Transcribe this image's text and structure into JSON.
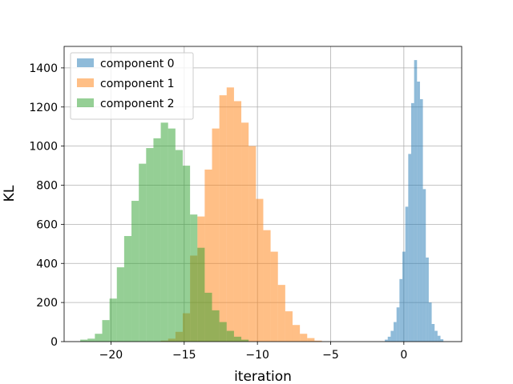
{
  "chart_data": {
    "type": "histogram",
    "title": "",
    "xlabel": "iteration",
    "ylabel": "KL",
    "xlim": [
      -23.2,
      3.95
    ],
    "ylim": [
      0,
      1510
    ],
    "xticks": [
      -20,
      -15,
      -10,
      -5,
      0
    ],
    "xtick_labels": [
      "−20",
      "−15",
      "−10",
      "−5",
      "0"
    ],
    "yticks": [
      0,
      200,
      400,
      600,
      800,
      1000,
      1200,
      1400
    ],
    "ytick_labels": [
      "0",
      "200",
      "400",
      "600",
      "800",
      "1000",
      "1200",
      "1400"
    ],
    "grid": true,
    "legend_position": "top-left",
    "alpha": 0.5,
    "series": [
      {
        "name": "component 0",
        "color": "#1f77b4",
        "bins": [
          {
            "x0": -1.3,
            "x1": -1.1,
            "count": 10
          },
          {
            "x0": -1.1,
            "x1": -0.9,
            "count": 25
          },
          {
            "x0": -0.9,
            "x1": -0.7,
            "count": 55
          },
          {
            "x0": -0.7,
            "x1": -0.5,
            "count": 100
          },
          {
            "x0": -0.5,
            "x1": -0.3,
            "count": 175
          },
          {
            "x0": -0.3,
            "x1": -0.1,
            "count": 320
          },
          {
            "x0": -0.1,
            "x1": 0.1,
            "count": 460
          },
          {
            "x0": 0.1,
            "x1": 0.3,
            "count": 690
          },
          {
            "x0": 0.3,
            "x1": 0.5,
            "count": 960
          },
          {
            "x0": 0.5,
            "x1": 0.7,
            "count": 1220
          },
          {
            "x0": 0.7,
            "x1": 0.9,
            "count": 1440
          },
          {
            "x0": 0.9,
            "x1": 1.1,
            "count": 1330
          },
          {
            "x0": 1.1,
            "x1": 1.3,
            "count": 1240
          },
          {
            "x0": 1.3,
            "x1": 1.5,
            "count": 780
          },
          {
            "x0": 1.5,
            "x1": 1.7,
            "count": 430
          },
          {
            "x0": 1.7,
            "x1": 1.9,
            "count": 200
          },
          {
            "x0": 1.9,
            "x1": 2.1,
            "count": 90
          },
          {
            "x0": 2.1,
            "x1": 2.3,
            "count": 55
          },
          {
            "x0": 2.3,
            "x1": 2.5,
            "count": 30
          },
          {
            "x0": 2.5,
            "x1": 2.7,
            "count": 12
          }
        ]
      },
      {
        "name": "component 1",
        "color": "#ff7f0e",
        "bins": [
          {
            "x0": -16.6,
            "x1": -16.1,
            "count": 5
          },
          {
            "x0": -16.1,
            "x1": -15.6,
            "count": 15
          },
          {
            "x0": -15.6,
            "x1": -15.1,
            "count": 50
          },
          {
            "x0": -15.1,
            "x1": -14.6,
            "count": 145
          },
          {
            "x0": -14.6,
            "x1": -14.1,
            "count": 440
          },
          {
            "x0": -14.1,
            "x1": -13.6,
            "count": 640
          },
          {
            "x0": -13.6,
            "x1": -13.1,
            "count": 880
          },
          {
            "x0": -13.1,
            "x1": -12.6,
            "count": 1090
          },
          {
            "x0": -12.6,
            "x1": -12.1,
            "count": 1260
          },
          {
            "x0": -12.1,
            "x1": -11.6,
            "count": 1300
          },
          {
            "x0": -11.6,
            "x1": -11.1,
            "count": 1230
          },
          {
            "x0": -11.1,
            "x1": -10.6,
            "count": 1120
          },
          {
            "x0": -10.6,
            "x1": -10.1,
            "count": 1000
          },
          {
            "x0": -10.1,
            "x1": -9.6,
            "count": 730
          },
          {
            "x0": -9.6,
            "x1": -9.1,
            "count": 570
          },
          {
            "x0": -9.1,
            "x1": -8.6,
            "count": 460
          },
          {
            "x0": -8.6,
            "x1": -8.1,
            "count": 290
          },
          {
            "x0": -8.1,
            "x1": -7.6,
            "count": 155
          },
          {
            "x0": -7.6,
            "x1": -7.1,
            "count": 85
          },
          {
            "x0": -7.1,
            "x1": -6.6,
            "count": 40
          },
          {
            "x0": -6.6,
            "x1": -6.1,
            "count": 18
          },
          {
            "x0": -6.1,
            "x1": -5.6,
            "count": 5
          }
        ]
      },
      {
        "name": "component 2",
        "color": "#2ca02c",
        "bins": [
          {
            "x0": -22.1,
            "x1": -21.6,
            "count": 10
          },
          {
            "x0": -21.6,
            "x1": -21.1,
            "count": 15
          },
          {
            "x0": -21.1,
            "x1": -20.6,
            "count": 40
          },
          {
            "x0": -20.6,
            "x1": -20.1,
            "count": 110
          },
          {
            "x0": -20.1,
            "x1": -19.6,
            "count": 220
          },
          {
            "x0": -19.6,
            "x1": -19.1,
            "count": 380
          },
          {
            "x0": -19.1,
            "x1": -18.6,
            "count": 540
          },
          {
            "x0": -18.6,
            "x1": -18.1,
            "count": 720
          },
          {
            "x0": -18.1,
            "x1": -17.6,
            "count": 910
          },
          {
            "x0": -17.6,
            "x1": -17.1,
            "count": 990
          },
          {
            "x0": -17.1,
            "x1": -16.6,
            "count": 1040
          },
          {
            "x0": -16.6,
            "x1": -16.1,
            "count": 1120
          },
          {
            "x0": -16.1,
            "x1": -15.6,
            "count": 1090
          },
          {
            "x0": -15.6,
            "x1": -15.1,
            "count": 980
          },
          {
            "x0": -15.1,
            "x1": -14.6,
            "count": 900
          },
          {
            "x0": -14.6,
            "x1": -14.1,
            "count": 650
          },
          {
            "x0": -14.1,
            "x1": -13.6,
            "count": 480
          },
          {
            "x0": -13.6,
            "x1": -13.1,
            "count": 250
          },
          {
            "x0": -13.1,
            "x1": -12.6,
            "count": 160
          },
          {
            "x0": -12.6,
            "x1": -12.1,
            "count": 100
          },
          {
            "x0": -12.1,
            "x1": -11.6,
            "count": 55
          },
          {
            "x0": -11.6,
            "x1": -11.1,
            "count": 25
          },
          {
            "x0": -11.1,
            "x1": -10.6,
            "count": 10
          }
        ]
      }
    ]
  }
}
